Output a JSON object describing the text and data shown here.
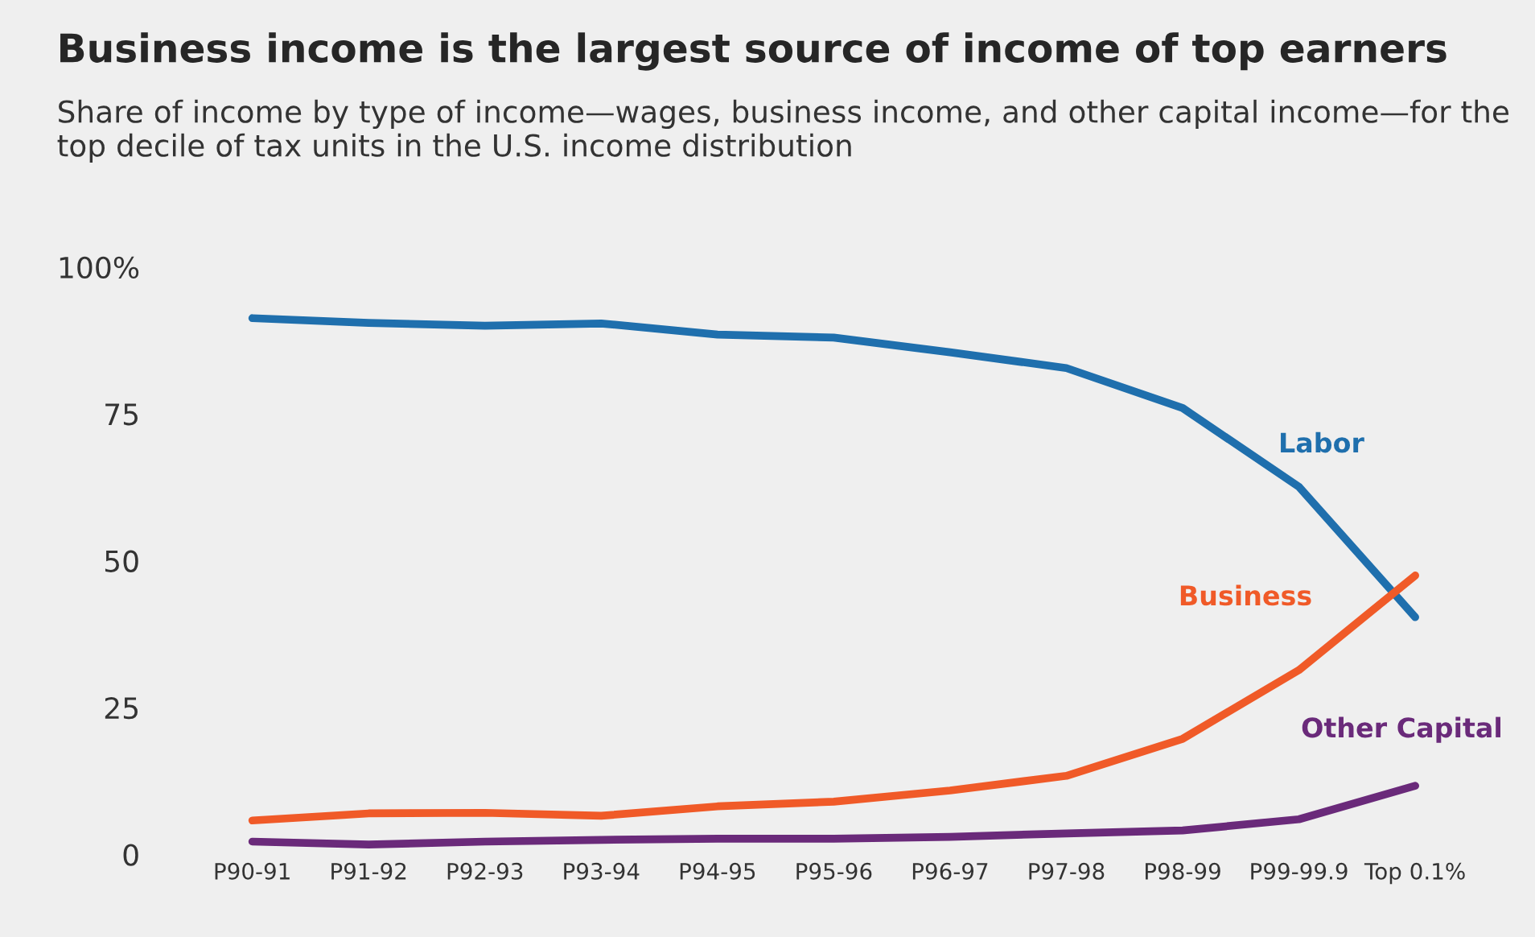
{
  "chart_data": {
    "type": "line",
    "title": "Business income is the largest source of income of top earners",
    "subtitle": "Share of income by type of income—wages, business income, and other capital income—for the top decile of tax units in the U.S. income distribution",
    "categories": [
      "P90-91",
      "P91-92",
      "P92-93",
      "P93-94",
      "P94-95",
      "P95-96",
      "P96-97",
      "P97-98",
      "P98-99",
      "P99-99.9",
      "Top 0.1%"
    ],
    "series": [
      {
        "name": "Labor",
        "color": "#1f6fad",
        "values": [
          91.3,
          90.5,
          90,
          90.4,
          88.5,
          88,
          85.5,
          82.8,
          76,
          62.6,
          40.4
        ]
      },
      {
        "name": "Business",
        "color": "#f05a28",
        "values": [
          5.8,
          7,
          7.1,
          6.6,
          8.2,
          9,
          10.9,
          13.4,
          19.7,
          31.4,
          47.5
        ]
      },
      {
        "name": "Other Capital",
        "color": "#6a2a7a",
        "values": [
          2.2,
          1.7,
          2.2,
          2.5,
          2.7,
          2.7,
          3,
          3.6,
          4.1,
          6,
          11.7
        ]
      }
    ],
    "ylim": [
      0,
      100
    ],
    "yticks": [
      {
        "value": 100,
        "label": "100%"
      },
      75,
      50,
      25,
      0
    ],
    "grid": false,
    "legend": false,
    "marker": "none",
    "line_style": "solid"
  }
}
